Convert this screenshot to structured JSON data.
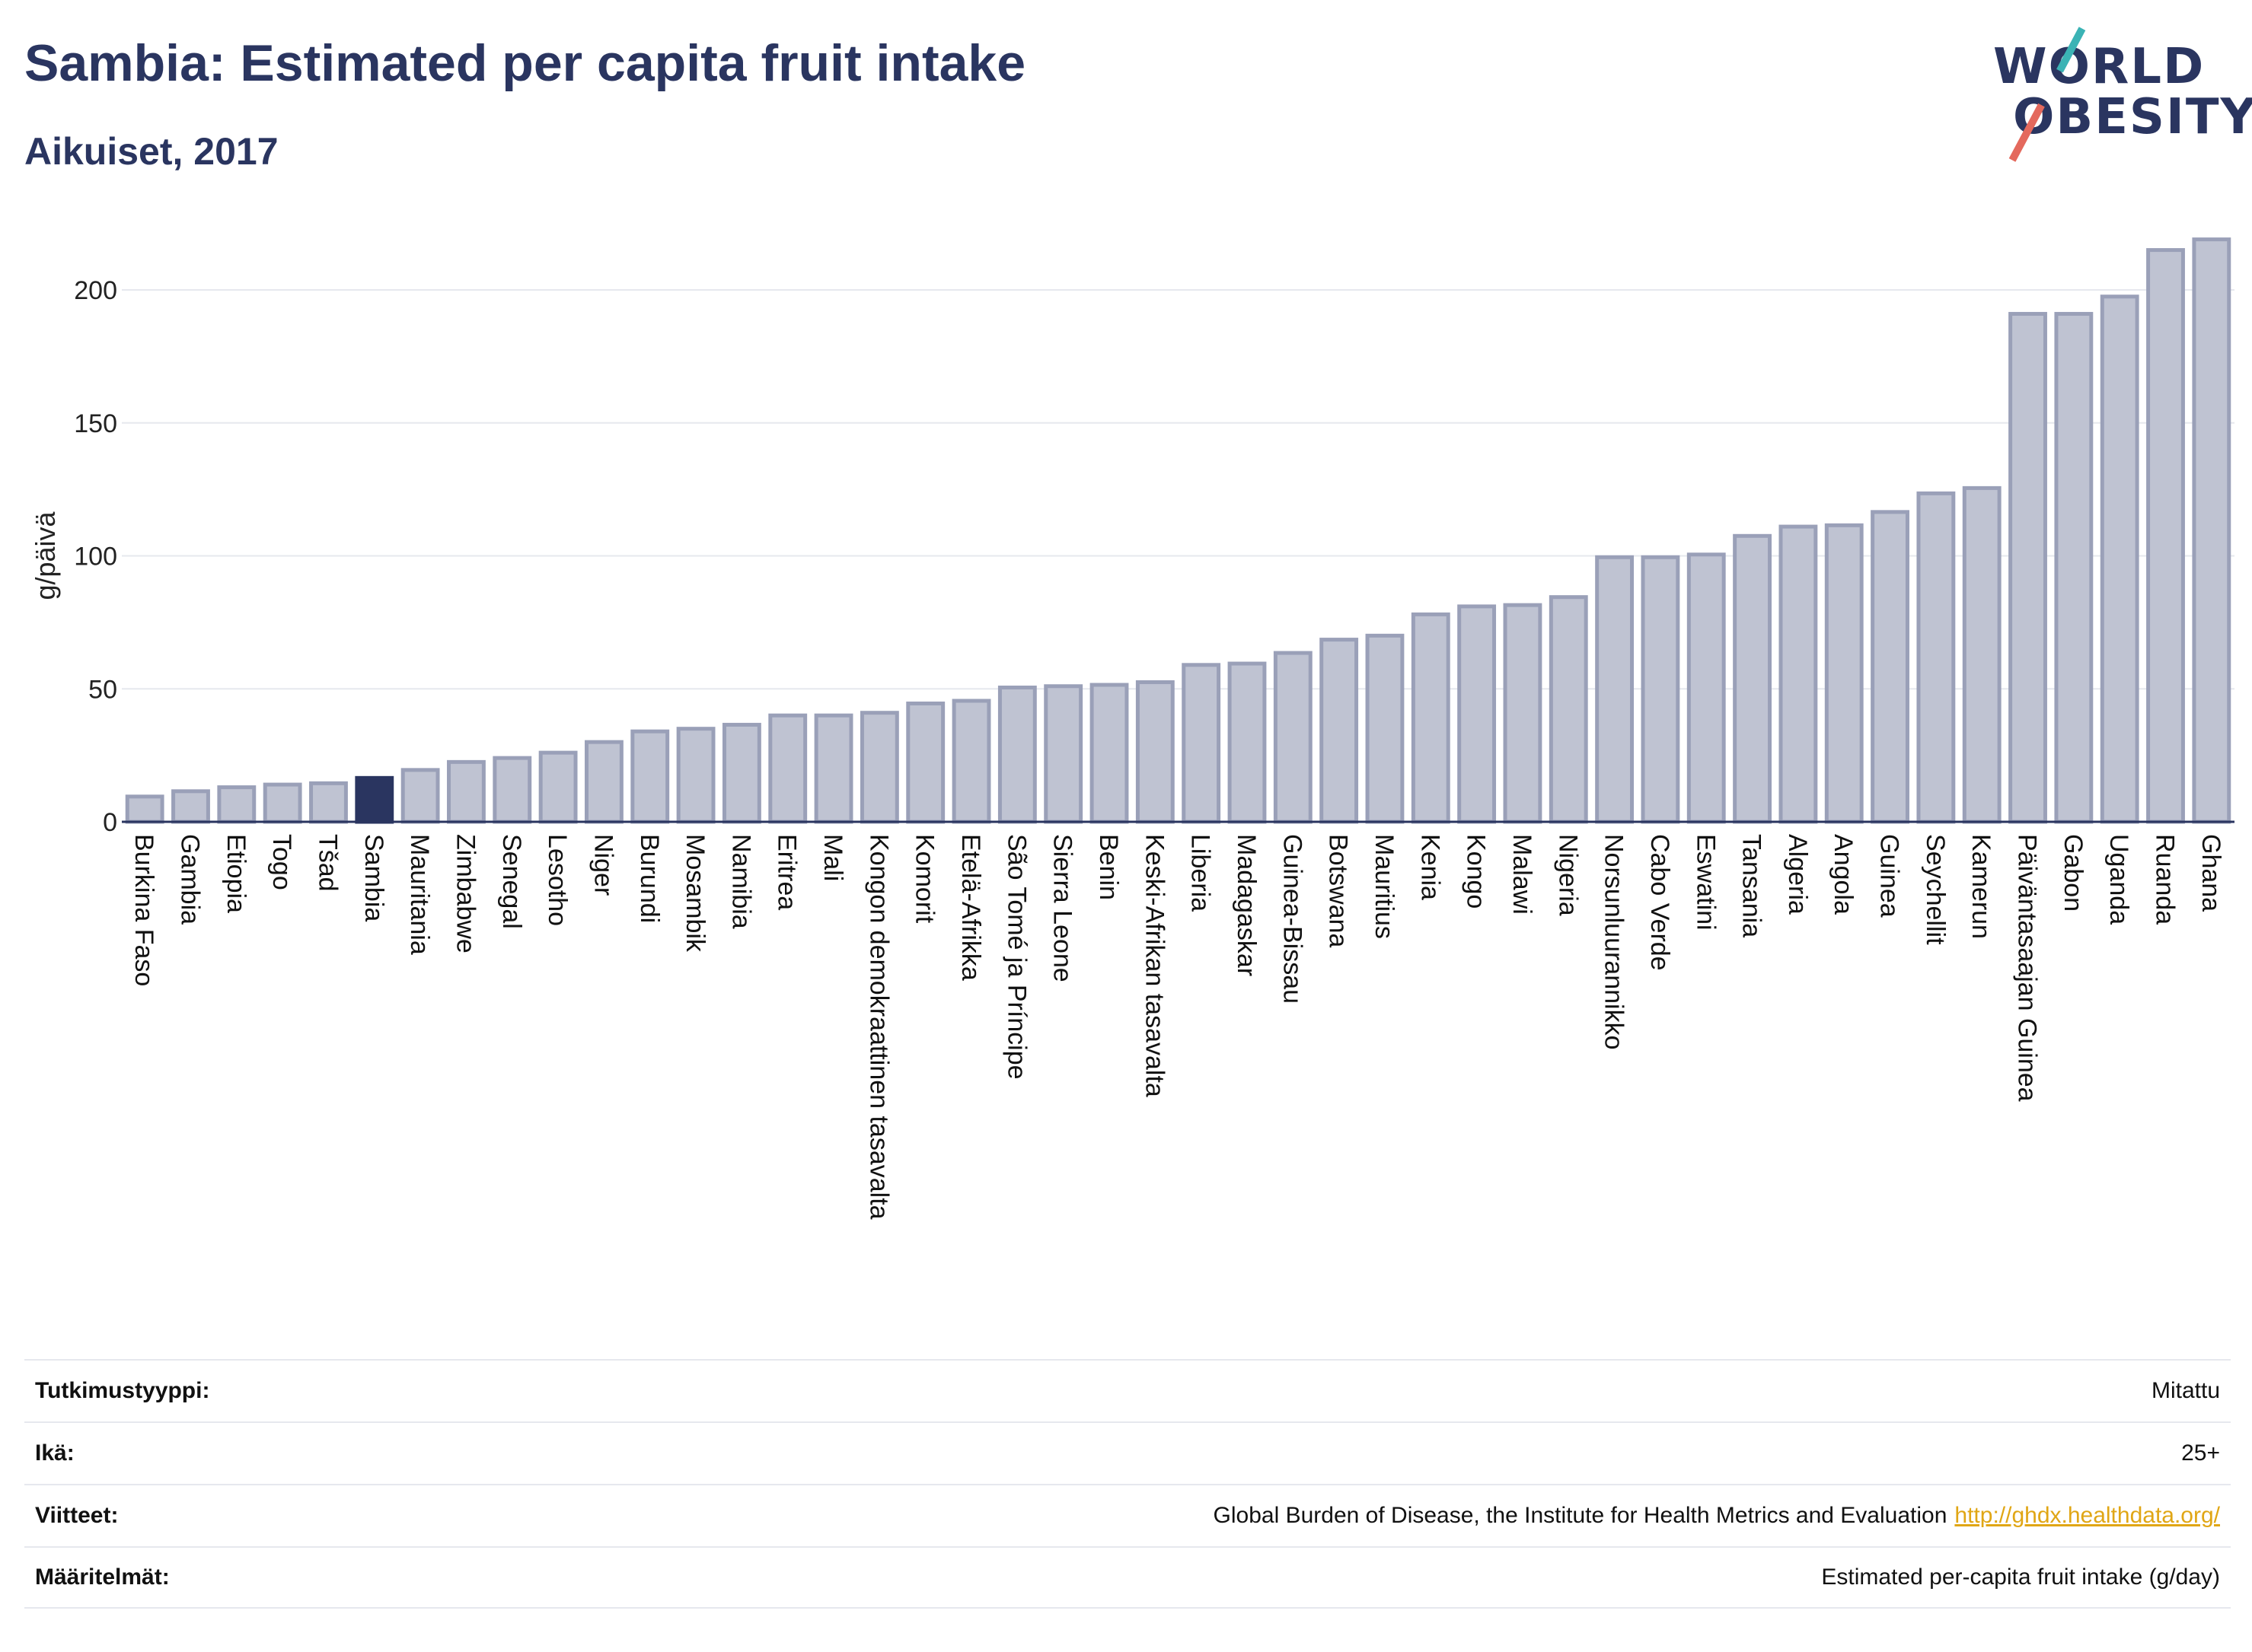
{
  "header": {
    "title": "Sambia: Estimated per capita fruit intake",
    "subtitle": "Aikuiset, 2017",
    "logo_line1": "WORLD",
    "logo_line2": "OBESITY"
  },
  "colors": {
    "bar": "#bfc3d2",
    "bar_stroke": "#9aa0b8",
    "highlight": "#2a3560",
    "grid": "#e6e8ee",
    "text": "#2a3560"
  },
  "chart_data": {
    "type": "bar",
    "title": "Sambia: Estimated per capita fruit intake",
    "subtitle": "Aikuiset, 2017",
    "ylabel": "g/päivä",
    "xlabel": "",
    "ylim": [
      0,
      220
    ],
    "yticks": [
      0,
      50,
      100,
      150,
      200
    ],
    "grid": true,
    "highlight": "Sambia",
    "categories": [
      "Burkina Faso",
      "Gambia",
      "Etiopia",
      "Togo",
      "Tšad",
      "Sambia",
      "Mauritania",
      "Zimbabwe",
      "Senegal",
      "Lesotho",
      "Niger",
      "Burundi",
      "Mosambik",
      "Namibia",
      "Eritrea",
      "Mali",
      "Kongon demokraattinen tasavalta",
      "Komorit",
      "Etelä-Afrikka",
      "São Tomé ja Príncipe",
      "Sierra Leone",
      "Benin",
      "Keski-Afrikan tasavalta",
      "Liberia",
      "Madagaskar",
      "Guinea-Bissau",
      "Botswana",
      "Mauritius",
      "Kenia",
      "Kongo",
      "Malawi",
      "Nigeria",
      "Norsunluurannikko",
      "Cabo Verde",
      "Eswatini",
      "Tansania",
      "Algeria",
      "Angola",
      "Guinea",
      "Seychellit",
      "Kamerun",
      "Päiväntasaajan Guinea",
      "Gabon",
      "Uganda",
      "Ruanda",
      "Ghana"
    ],
    "values": [
      9.5,
      11.5,
      13,
      14,
      14.5,
      16.5,
      19.5,
      22.5,
      24,
      26,
      30,
      34,
      35,
      36.5,
      40,
      40,
      41,
      44.5,
      45.5,
      50.5,
      51,
      51.5,
      52.5,
      59,
      59.5,
      63.5,
      68.5,
      70,
      78,
      81,
      81.5,
      84.5,
      99.5,
      99.5,
      100.5,
      107.5,
      111,
      111.5,
      116.5,
      123.5,
      125.5,
      191,
      191,
      197.5,
      215,
      219
    ]
  },
  "info": {
    "rows": [
      {
        "label": "Tutkimustyyppi:",
        "value": "Mitattu"
      },
      {
        "label": "Ikä:",
        "value": "25+"
      },
      {
        "label": "Viitteet:",
        "value": "Global Burden of Disease, the Institute for Health Metrics and Evaluation",
        "link": "http://ghdx.healthdata.org/"
      },
      {
        "label": "Määritelmät:",
        "value": "Estimated per-capita fruit intake (g/day)"
      }
    ]
  }
}
